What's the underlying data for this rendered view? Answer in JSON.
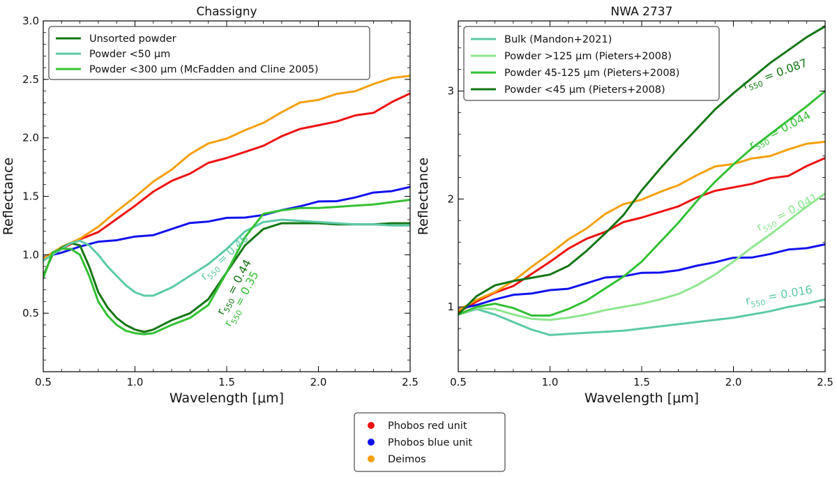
{
  "figure": {
    "legend": {
      "entries": [
        {
          "label": "Phobos red unit",
          "color": "#ee1111"
        },
        {
          "label": "Phobos blue unit",
          "color": "#1111ee"
        },
        {
          "label": "Deimos",
          "color": "#f5a00a"
        }
      ]
    }
  },
  "chart_data": [
    {
      "type": "line",
      "title": "Chassigny",
      "xlabel": "Wavelength [μm]",
      "ylabel": "Reflectance",
      "xlim": [
        0.5,
        2.5
      ],
      "ylim": [
        0.0,
        3.0
      ],
      "xticks": [
        0.5,
        1.0,
        1.5,
        2.0,
        2.5
      ],
      "xtick_labels": [
        "0.5",
        "1.0",
        "1.5",
        "2.0",
        "2.5"
      ],
      "yticks": [
        0.5,
        1.0,
        1.5,
        2.0,
        2.5,
        3.0
      ],
      "ytick_labels": [
        "0.5",
        "1.0",
        "1.5",
        "2.0",
        "2.5",
        "3.0"
      ],
      "legend_position": "top-left",
      "series": [
        {
          "name": "Phobos red unit",
          "color": "#ee1111",
          "in_legend": false,
          "x": [
            0.5,
            0.6,
            0.7,
            0.8,
            0.9,
            1.0,
            1.1,
            1.2,
            1.3,
            1.4,
            1.5,
            1.6,
            1.7,
            1.8,
            1.9,
            2.0,
            2.1,
            2.2,
            2.3,
            2.4,
            2.5
          ],
          "y": [
            0.95,
            1.05,
            1.12,
            1.2,
            1.3,
            1.43,
            1.54,
            1.62,
            1.7,
            1.78,
            1.84,
            1.88,
            1.92,
            2.02,
            2.07,
            2.12,
            2.14,
            2.18,
            2.22,
            2.3,
            2.38
          ]
        },
        {
          "name": "Phobos blue unit",
          "color": "#1111ee",
          "in_legend": false,
          "x": [
            0.5,
            0.6,
            0.7,
            0.8,
            0.9,
            1.0,
            1.1,
            1.2,
            1.3,
            1.4,
            1.5,
            1.6,
            1.7,
            1.8,
            1.9,
            2.0,
            2.1,
            2.2,
            2.3,
            2.4,
            2.5
          ],
          "y": [
            0.98,
            1.03,
            1.07,
            1.1,
            1.13,
            1.15,
            1.18,
            1.22,
            1.26,
            1.29,
            1.31,
            1.33,
            1.34,
            1.37,
            1.42,
            1.45,
            1.47,
            1.49,
            1.52,
            1.55,
            1.58
          ]
        },
        {
          "name": "Deimos",
          "color": "#f5a00a",
          "in_legend": false,
          "x": [
            0.5,
            0.6,
            0.7,
            0.8,
            0.9,
            1.0,
            1.1,
            1.2,
            1.3,
            1.4,
            1.5,
            1.6,
            1.7,
            1.8,
            1.9,
            2.0,
            2.1,
            2.2,
            2.3,
            2.4,
            2.5
          ],
          "y": [
            0.97,
            1.06,
            1.15,
            1.24,
            1.36,
            1.5,
            1.62,
            1.74,
            1.86,
            1.94,
            2.0,
            2.06,
            2.14,
            2.22,
            2.29,
            2.33,
            2.37,
            2.41,
            2.46,
            2.5,
            2.53
          ]
        },
        {
          "name": "Unsorted powder",
          "color": "#137613",
          "in_legend": true,
          "x": [
            0.5,
            0.55,
            0.6,
            0.65,
            0.7,
            0.75,
            0.8,
            0.85,
            0.9,
            0.95,
            1.0,
            1.05,
            1.1,
            1.2,
            1.3,
            1.4,
            1.5,
            1.6,
            1.7,
            1.8,
            1.9,
            2.0,
            2.1,
            2.2,
            2.3,
            2.4,
            2.5
          ],
          "y": [
            0.82,
            1.0,
            1.06,
            1.1,
            1.08,
            0.9,
            0.68,
            0.55,
            0.46,
            0.4,
            0.36,
            0.34,
            0.36,
            0.44,
            0.5,
            0.62,
            0.85,
            1.08,
            1.22,
            1.27,
            1.27,
            1.27,
            1.26,
            1.26,
            1.26,
            1.27,
            1.27
          ]
        },
        {
          "name": "Powder <50 μm",
          "color": "#5cc9a7",
          "in_legend": true,
          "x": [
            0.5,
            0.55,
            0.6,
            0.65,
            0.7,
            0.75,
            0.8,
            0.85,
            0.9,
            0.95,
            1.0,
            1.05,
            1.1,
            1.2,
            1.3,
            1.4,
            1.5,
            1.6,
            1.7,
            1.8,
            1.9,
            2.0,
            2.1,
            2.2,
            2.3,
            2.4,
            2.5
          ],
          "y": [
            0.95,
            1.0,
            1.05,
            1.1,
            1.12,
            1.08,
            1.0,
            0.9,
            0.82,
            0.74,
            0.68,
            0.65,
            0.65,
            0.72,
            0.82,
            0.92,
            1.05,
            1.2,
            1.28,
            1.3,
            1.29,
            1.28,
            1.27,
            1.26,
            1.26,
            1.25,
            1.25
          ]
        },
        {
          "name": "Powder <300 μm (McFadden and Cline 2005)",
          "color": "#33c033",
          "in_legend": true,
          "x": [
            0.5,
            0.55,
            0.6,
            0.65,
            0.7,
            0.75,
            0.8,
            0.85,
            0.9,
            0.95,
            1.0,
            1.05,
            1.1,
            1.2,
            1.3,
            1.4,
            1.5,
            1.6,
            1.7,
            1.8,
            1.9,
            2.0,
            2.1,
            2.2,
            2.3,
            2.4,
            2.5
          ],
          "y": [
            0.8,
            1.02,
            1.05,
            1.05,
            1.0,
            0.82,
            0.6,
            0.48,
            0.4,
            0.35,
            0.33,
            0.32,
            0.33,
            0.4,
            0.46,
            0.57,
            0.85,
            1.15,
            1.35,
            1.38,
            1.4,
            1.4,
            1.41,
            1.42,
            1.43,
            1.45,
            1.47
          ]
        }
      ],
      "annotations": [
        {
          "base": "r",
          "sub": "550",
          "text": " = 0.46",
          "color": "#5cc9a7",
          "x": 1.38,
          "y": 0.78,
          "rotate": -43
        },
        {
          "base": "r",
          "sub": "550",
          "text": " = 0.44",
          "color": "#137613",
          "x": 1.48,
          "y": 0.48,
          "rotate": -62
        },
        {
          "base": "r",
          "sub": "550",
          "text": " = 0.35",
          "color": "#33c033",
          "x": 1.52,
          "y": 0.38,
          "rotate": -62
        }
      ]
    },
    {
      "type": "line",
      "title": "NWA 2737",
      "xlabel": "Wavelength [μm]",
      "ylabel": "Reflectance",
      "xlim": [
        0.5,
        2.5
      ],
      "ylim": [
        0.4,
        3.65
      ],
      "xticks": [
        0.5,
        1.0,
        1.5,
        2.0,
        2.5
      ],
      "xtick_labels": [
        "0.5",
        "1.0",
        "1.5",
        "2.0",
        "2.5"
      ],
      "yticks": [
        1,
        2,
        3
      ],
      "ytick_labels": [
        "1",
        "2",
        "3"
      ],
      "legend_position": "top-left",
      "series": [
        {
          "name": "Phobos red unit",
          "color": "#ee1111",
          "in_legend": false,
          "x": [
            0.5,
            0.6,
            0.7,
            0.8,
            0.9,
            1.0,
            1.1,
            1.2,
            1.3,
            1.4,
            1.5,
            1.6,
            1.7,
            1.8,
            1.9,
            2.0,
            2.1,
            2.2,
            2.3,
            2.4,
            2.5
          ],
          "y": [
            0.95,
            1.05,
            1.12,
            1.2,
            1.3,
            1.43,
            1.54,
            1.62,
            1.7,
            1.78,
            1.84,
            1.88,
            1.92,
            2.02,
            2.07,
            2.12,
            2.14,
            2.18,
            2.22,
            2.3,
            2.38
          ]
        },
        {
          "name": "Phobos blue unit",
          "color": "#1111ee",
          "in_legend": false,
          "x": [
            0.5,
            0.6,
            0.7,
            0.8,
            0.9,
            1.0,
            1.1,
            1.2,
            1.3,
            1.4,
            1.5,
            1.6,
            1.7,
            1.8,
            1.9,
            2.0,
            2.1,
            2.2,
            2.3,
            2.4,
            2.5
          ],
          "y": [
            0.98,
            1.03,
            1.07,
            1.1,
            1.13,
            1.15,
            1.18,
            1.22,
            1.26,
            1.29,
            1.31,
            1.33,
            1.34,
            1.37,
            1.42,
            1.45,
            1.47,
            1.49,
            1.52,
            1.55,
            1.58
          ]
        },
        {
          "name": "Deimos",
          "color": "#f5a00a",
          "in_legend": false,
          "x": [
            0.5,
            0.6,
            0.7,
            0.8,
            0.9,
            1.0,
            1.1,
            1.2,
            1.3,
            1.4,
            1.5,
            1.6,
            1.7,
            1.8,
            1.9,
            2.0,
            2.1,
            2.2,
            2.3,
            2.4,
            2.5
          ],
          "y": [
            0.97,
            1.06,
            1.15,
            1.24,
            1.36,
            1.5,
            1.62,
            1.74,
            1.86,
            1.94,
            2.0,
            2.06,
            2.14,
            2.22,
            2.29,
            2.33,
            2.37,
            2.41,
            2.46,
            2.5,
            2.53
          ]
        },
        {
          "name": "Bulk (Mandon+2021)",
          "color": "#5cc9a7",
          "in_legend": true,
          "x": [
            0.5,
            0.6,
            0.7,
            0.8,
            0.9,
            1.0,
            1.1,
            1.2,
            1.3,
            1.4,
            1.5,
            1.6,
            1.7,
            1.8,
            1.9,
            2.0,
            2.1,
            2.2,
            2.3,
            2.4,
            2.5
          ],
          "y": [
            0.93,
            0.98,
            0.93,
            0.86,
            0.79,
            0.74,
            0.75,
            0.76,
            0.77,
            0.78,
            0.8,
            0.82,
            0.84,
            0.86,
            0.88,
            0.9,
            0.93,
            0.96,
            1.0,
            1.03,
            1.07
          ]
        },
        {
          "name": "Powder >125 μm (Pieters+2008)",
          "color": "#8ee68e",
          "in_legend": true,
          "x": [
            0.5,
            0.6,
            0.7,
            0.8,
            0.9,
            1.0,
            1.1,
            1.2,
            1.3,
            1.4,
            1.5,
            1.6,
            1.7,
            1.8,
            1.9,
            2.0,
            2.1,
            2.2,
            2.3,
            2.4,
            2.5
          ],
          "y": [
            0.93,
            0.99,
            0.98,
            0.93,
            0.89,
            0.88,
            0.9,
            0.93,
            0.97,
            1.0,
            1.03,
            1.07,
            1.12,
            1.2,
            1.3,
            1.42,
            1.55,
            1.67,
            1.8,
            1.93,
            2.05
          ]
        },
        {
          "name": "Powder 45-125 μm (Pieters+2008)",
          "color": "#33c033",
          "in_legend": true,
          "x": [
            0.5,
            0.6,
            0.7,
            0.8,
            0.9,
            1.0,
            1.1,
            1.2,
            1.3,
            1.4,
            1.5,
            1.6,
            1.7,
            1.8,
            1.9,
            2.0,
            2.1,
            2.2,
            2.3,
            2.4,
            2.5
          ],
          "y": [
            0.93,
            1.0,
            1.03,
            0.99,
            0.92,
            0.92,
            0.98,
            1.06,
            1.17,
            1.28,
            1.42,
            1.6,
            1.78,
            1.98,
            2.16,
            2.32,
            2.47,
            2.6,
            2.73,
            2.86,
            3.0
          ]
        },
        {
          "name": "Powder <45 μm (Pieters+2008)",
          "color": "#137613",
          "in_legend": true,
          "x": [
            0.5,
            0.6,
            0.7,
            0.8,
            0.9,
            1.0,
            1.1,
            1.2,
            1.3,
            1.4,
            1.5,
            1.6,
            1.7,
            1.8,
            1.9,
            2.0,
            2.1,
            2.2,
            2.3,
            2.4,
            2.5
          ],
          "y": [
            0.93,
            1.1,
            1.2,
            1.24,
            1.27,
            1.3,
            1.38,
            1.52,
            1.68,
            1.85,
            2.08,
            2.28,
            2.47,
            2.65,
            2.83,
            2.98,
            3.12,
            3.26,
            3.38,
            3.5,
            3.6
          ]
        }
      ],
      "annotations": [
        {
          "base": "r",
          "sub": "550",
          "text": " = 0.087",
          "color": "#137613",
          "x": 2.06,
          "y": 3.02,
          "rotate": -20
        },
        {
          "base": "r",
          "sub": "550",
          "text": " = 0.044",
          "color": "#33c033",
          "x": 2.1,
          "y": 2.46,
          "rotate": -28
        },
        {
          "base": "r",
          "sub": "550",
          "text": " = 0.041",
          "color": "#8ee68e",
          "x": 2.14,
          "y": 1.7,
          "rotate": -28
        },
        {
          "base": "r",
          "sub": "550",
          "text": " = 0.016",
          "color": "#5cc9a7",
          "x": 2.07,
          "y": 1.02,
          "rotate": -10
        }
      ]
    }
  ]
}
